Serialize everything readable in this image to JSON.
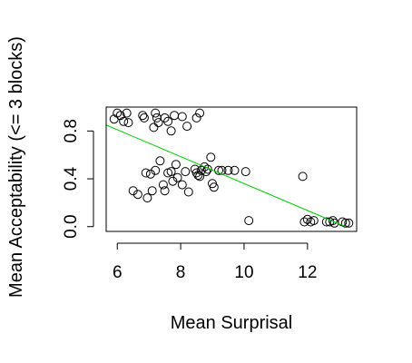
{
  "chart_data": {
    "type": "scatter",
    "title": "",
    "xlabel": "Mean Surprisal",
    "ylabel": "Mean Acceptability (<= 3 blocks)",
    "xlim": [
      5.65,
      13.55
    ],
    "ylim": [
      -0.04,
      1.0
    ],
    "xticks": [
      6,
      8,
      10,
      12
    ],
    "xtick_labels": [
      "6",
      "8",
      "10",
      "12"
    ],
    "yticks": [
      0.0,
      0.4,
      0.8
    ],
    "ytick_labels": [
      "0.0",
      "0.4",
      "0.8"
    ],
    "grid": false,
    "legend": "none",
    "point_color": "#000000",
    "fit_line": {
      "color": "#00cc00",
      "x": [
        5.65,
        13.2
      ],
      "y": [
        0.85,
        0.0
      ]
    },
    "series": [
      {
        "points": [
          {
            "x": 5.9,
            "y": 0.9
          },
          {
            "x": 6.0,
            "y": 0.95
          },
          {
            "x": 6.1,
            "y": 0.93
          },
          {
            "x": 6.2,
            "y": 0.88
          },
          {
            "x": 6.3,
            "y": 0.95
          },
          {
            "x": 6.35,
            "y": 0.87
          },
          {
            "x": 6.8,
            "y": 0.93
          },
          {
            "x": 6.85,
            "y": 0.91
          },
          {
            "x": 7.2,
            "y": 0.95
          },
          {
            "x": 7.25,
            "y": 0.91
          },
          {
            "x": 7.3,
            "y": 0.87
          },
          {
            "x": 7.15,
            "y": 0.83
          },
          {
            "x": 7.5,
            "y": 0.91
          },
          {
            "x": 7.6,
            "y": 0.88
          },
          {
            "x": 7.8,
            "y": 0.93
          },
          {
            "x": 7.7,
            "y": 0.8
          },
          {
            "x": 8.05,
            "y": 0.92
          },
          {
            "x": 8.5,
            "y": 0.91
          },
          {
            "x": 8.6,
            "y": 0.95
          },
          {
            "x": 8.2,
            "y": 0.84
          },
          {
            "x": 6.5,
            "y": 0.3
          },
          {
            "x": 6.65,
            "y": 0.27
          },
          {
            "x": 6.9,
            "y": 0.45
          },
          {
            "x": 6.95,
            "y": 0.24
          },
          {
            "x": 7.05,
            "y": 0.44
          },
          {
            "x": 7.1,
            "y": 0.3
          },
          {
            "x": 7.2,
            "y": 0.47
          },
          {
            "x": 7.35,
            "y": 0.55
          },
          {
            "x": 7.45,
            "y": 0.35
          },
          {
            "x": 7.5,
            "y": 0.3
          },
          {
            "x": 7.6,
            "y": 0.45
          },
          {
            "x": 7.7,
            "y": 0.46
          },
          {
            "x": 7.75,
            "y": 0.38
          },
          {
            "x": 7.85,
            "y": 0.52
          },
          {
            "x": 7.9,
            "y": 0.41
          },
          {
            "x": 8.05,
            "y": 0.35
          },
          {
            "x": 8.15,
            "y": 0.46
          },
          {
            "x": 8.25,
            "y": 0.29
          },
          {
            "x": 8.45,
            "y": 0.48
          },
          {
            "x": 8.5,
            "y": 0.45
          },
          {
            "x": 8.55,
            "y": 0.43
          },
          {
            "x": 8.6,
            "y": 0.42
          },
          {
            "x": 8.65,
            "y": 0.47
          },
          {
            "x": 8.75,
            "y": 0.5
          },
          {
            "x": 8.8,
            "y": 0.46
          },
          {
            "x": 8.85,
            "y": 0.48
          },
          {
            "x": 8.95,
            "y": 0.58
          },
          {
            "x": 9.0,
            "y": 0.36
          },
          {
            "x": 9.05,
            "y": 0.33
          },
          {
            "x": 9.2,
            "y": 0.47
          },
          {
            "x": 9.3,
            "y": 0.47
          },
          {
            "x": 9.5,
            "y": 0.47
          },
          {
            "x": 9.7,
            "y": 0.47
          },
          {
            "x": 10.05,
            "y": 0.46
          },
          {
            "x": 10.15,
            "y": 0.05
          },
          {
            "x": 11.85,
            "y": 0.42
          },
          {
            "x": 11.9,
            "y": 0.04
          },
          {
            "x": 12.0,
            "y": 0.06
          },
          {
            "x": 12.1,
            "y": 0.04
          },
          {
            "x": 12.2,
            "y": 0.05
          },
          {
            "x": 12.6,
            "y": 0.04
          },
          {
            "x": 12.7,
            "y": 0.04
          },
          {
            "x": 12.8,
            "y": 0.05
          },
          {
            "x": 12.85,
            "y": 0.03
          },
          {
            "x": 13.1,
            "y": 0.04
          },
          {
            "x": 13.2,
            "y": 0.03
          },
          {
            "x": 13.3,
            "y": 0.03
          }
        ]
      }
    ]
  }
}
